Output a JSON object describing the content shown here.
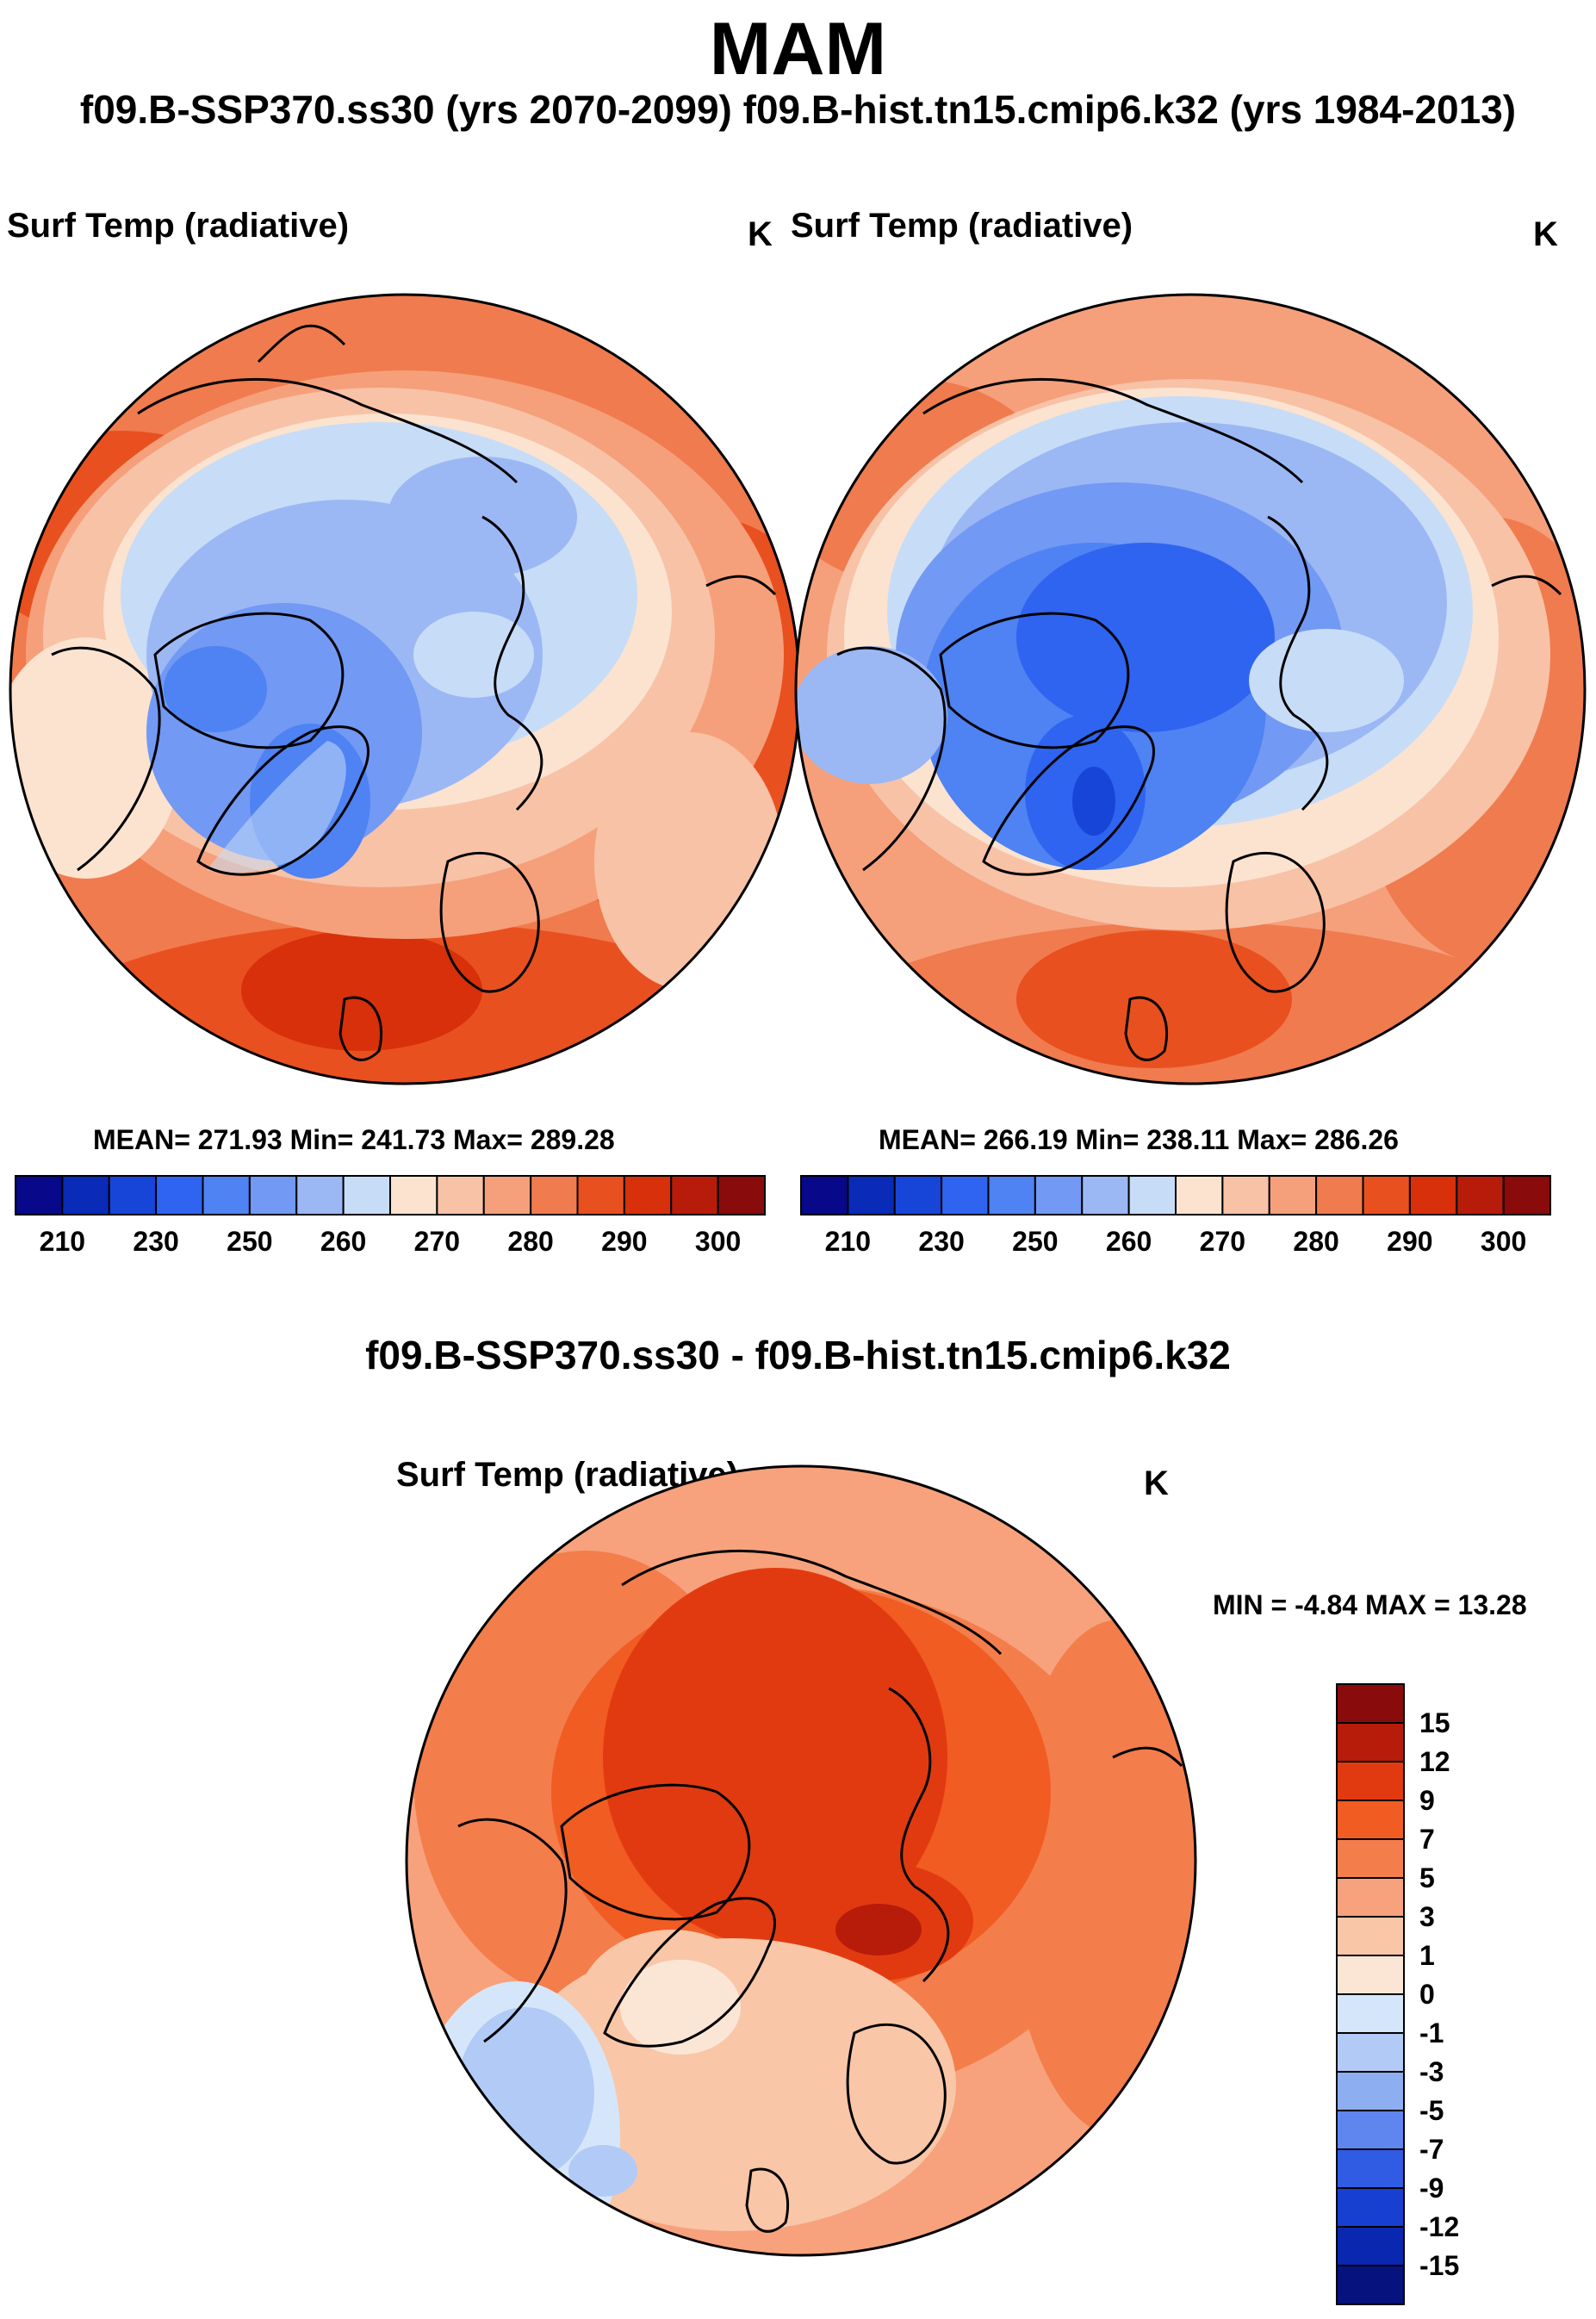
{
  "figure": {
    "season": "MAM",
    "subtitle": "f09.B-SSP370.ss30 (yrs 2070-2099)  f09.B-hist.tn15.cmip6.k32 (yrs 1984-2013)",
    "diff_title": "f09.B-SSP370.ss30 - f09.B-hist.tn15.cmip6.k32"
  },
  "panels": [
    {
      "id": "ssp370",
      "title": "Surf Temp (radiative)",
      "units": "K",
      "stats": "MEAN= 271.93  Min= 241.73  Max= 289.28",
      "mean": 271.93,
      "min": 241.73,
      "max": 289.28
    },
    {
      "id": "hist",
      "title": "Surf Temp (radiative)",
      "units": "K",
      "stats": "MEAN= 266.19  Min= 238.11  Max= 286.26",
      "mean": 266.19,
      "min": 238.11,
      "max": 286.26
    },
    {
      "id": "diff",
      "title": "Surf Temp (radiative)",
      "units": "K",
      "stats": "MIN =  -4.84 MAX =  13.28",
      "min": -4.84,
      "max": 13.28
    }
  ],
  "colorbars": {
    "absolute": {
      "orientation": "horizontal",
      "colors": [
        "#08088a",
        "#0a2ab8",
        "#1745d8",
        "#2f64f0",
        "#4f82f2",
        "#7299f3",
        "#9bb8f5",
        "#c7dcf7",
        "#fbe3d0",
        "#f8c2a7",
        "#f5a07b",
        "#f07b4e",
        "#e9501f",
        "#d7300b",
        "#b71c0a",
        "#8a0b0b"
      ],
      "tick_labels": [
        "210",
        "230",
        "250",
        "260",
        "270",
        "280",
        "290",
        "300"
      ]
    },
    "difference": {
      "orientation": "vertical",
      "colors_top_to_bottom": [
        "#8a0b0b",
        "#b71c0a",
        "#e23a10",
        "#f05c22",
        "#f47d4c",
        "#f7a27c",
        "#f9c6a8",
        "#fbe6d6",
        "#d6e6fa",
        "#b2caf6",
        "#8eaef2",
        "#5f86ef",
        "#2f5ce3",
        "#173fd0",
        "#0a27b0",
        "#06127d"
      ],
      "tick_labels": [
        "15",
        "12",
        "9",
        "7",
        "5",
        "3",
        "1",
        "0",
        "-1",
        "-3",
        "-5",
        "-7",
        "-9",
        "-12",
        "-15"
      ]
    }
  }
}
